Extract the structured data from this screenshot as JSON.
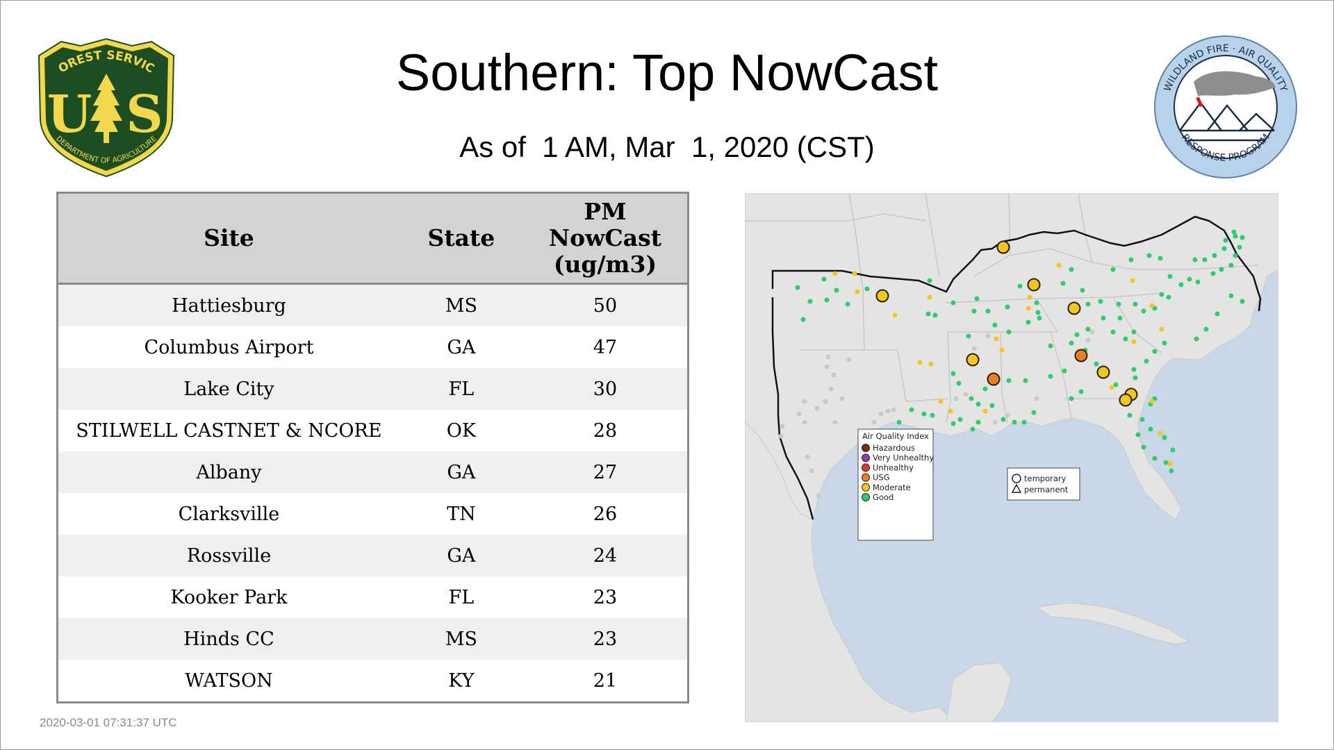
{
  "header": {
    "title": "Southern: Top NowCast",
    "subtitle": "As of  1 AM, Mar  1, 2020 (CST)"
  },
  "logos": {
    "forest_service": {
      "top_text": "FOREST SERVICE",
      "letters": "US",
      "bottom_text": "DEPARTMENT OF AGRICULTURE"
    },
    "wildland": {
      "top_text": "WILDLAND FIRE · AIR QUALITY",
      "bottom_text": "RESPONSE PROGRAM"
    }
  },
  "table": {
    "columns": [
      "Site",
      "State",
      "PM NowCast (ug/m3)"
    ],
    "header_pm_lines": [
      "PM",
      "NowCast",
      "(ug/m3)"
    ],
    "rows": [
      {
        "site": "Hattiesburg",
        "state": "MS",
        "pm": "50"
      },
      {
        "site": "Columbus Airport",
        "state": "GA",
        "pm": "47"
      },
      {
        "site": "Lake City",
        "state": "FL",
        "pm": "30"
      },
      {
        "site": "STILWELL CASTNET & NCORE",
        "state": "OK",
        "pm": "28"
      },
      {
        "site": "Albany",
        "state": "GA",
        "pm": "27"
      },
      {
        "site": "Clarksville",
        "state": "TN",
        "pm": "26"
      },
      {
        "site": "Rossville",
        "state": "GA",
        "pm": "24"
      },
      {
        "site": "Kooker Park",
        "state": "FL",
        "pm": "23"
      },
      {
        "site": "Hinds CC",
        "state": "MS",
        "pm": "23"
      },
      {
        "site": "WATSON",
        "state": "KY",
        "pm": "21"
      }
    ]
  },
  "map": {
    "legend_title": "Air Quality Index",
    "legend_items": [
      {
        "label": "Hazardous",
        "color": "#7e2b1c"
      },
      {
        "label": "Very Unhealthy",
        "color": "#8f3fa5"
      },
      {
        "label": "Unhealthy",
        "color": "#e53a2b"
      },
      {
        "label": "USG",
        "color": "#ee7d1e"
      },
      {
        "label": "Moderate",
        "color": "#f5c51a"
      },
      {
        "label": "Good",
        "color": "#2ecc71"
      }
    ],
    "type_items": [
      {
        "label": "temporary",
        "icon": "circle-icon"
      },
      {
        "label": "permanent",
        "icon": "triangle-icon"
      }
    ]
  },
  "footer": {
    "timestamp": "2020-03-01 07:31:37 UTC"
  },
  "colors": {
    "fs_green": "#1d4d22",
    "fs_gold": "#f2d84a",
    "water": "#c9d8e6",
    "land": "#e6e4e2",
    "good": "#2ecc71",
    "moderate": "#f5c51a",
    "usg": "#ee7d1e",
    "no_data": "#c6c9cc"
  }
}
